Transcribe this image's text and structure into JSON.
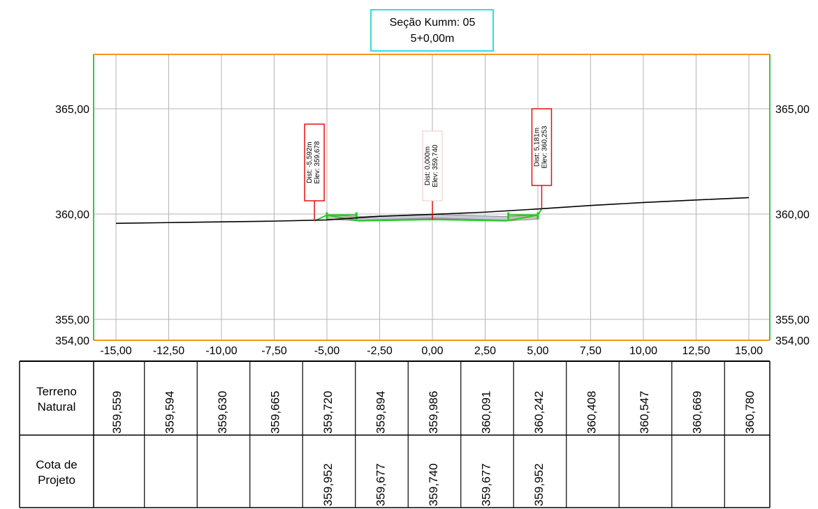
{
  "title": {
    "line1": "Seção Kumm: 05",
    "line2": "5+0,00m"
  },
  "colors": {
    "frame_top": "#f7941d",
    "frame_side": "#33cc33",
    "title_border": "#33dddd",
    "grid": "#b4b4b4",
    "terrain": "#000000",
    "design": "#22cc22",
    "label_red": "#e01010",
    "pavement": "#c9c2b0",
    "pavement_dark": "#8f8f9a"
  },
  "chart_data": {
    "type": "line",
    "x_ticks": [
      -15,
      -12.5,
      -10,
      -7.5,
      -5,
      -2.5,
      0,
      2.5,
      5,
      7.5,
      10,
      12.5,
      15
    ],
    "x_tick_labels": [
      "-15,00",
      "-12,50",
      "-10,00",
      "-7,50",
      "-5,00",
      "-2,50",
      "0,00",
      "2,50",
      "5,00",
      "7,50",
      "10,00",
      "12,50",
      "15,00"
    ],
    "y_ticks": [
      354,
      355,
      360,
      365
    ],
    "y_tick_labels": [
      "354,00",
      "355,00",
      "360,00",
      "365,00"
    ],
    "xlim": [
      -16,
      16.5
    ],
    "ylim": [
      354,
      367.4
    ],
    "grid": true,
    "series": [
      {
        "key": "terrain",
        "x": [
          -15,
          -12.5,
          -10,
          -7.5,
          -5,
          -2.5,
          0,
          2.5,
          5,
          7.5,
          10,
          12.5,
          15
        ],
        "y": [
          359.559,
          359.594,
          359.63,
          359.665,
          359.72,
          359.894,
          359.986,
          360.091,
          360.242,
          360.408,
          360.547,
          360.669,
          360.78
        ]
      },
      {
        "key": "design-top",
        "x": [
          -5.592,
          -5,
          -3.6,
          0,
          3.6,
          5,
          5.181
        ],
        "y": [
          359.678,
          359.952,
          359.877,
          359.985,
          359.877,
          359.952,
          360.253
        ]
      },
      {
        "key": "design-bottom",
        "x": [
          -5,
          -3.5,
          0,
          3.5,
          5
        ],
        "y": [
          359.952,
          359.677,
          359.74,
          359.677,
          359.952
        ]
      }
    ],
    "annotations": [
      {
        "x": 0,
        "y": 359.74,
        "dist": "Dist: 0,000m",
        "elev": "Elev: 359,740",
        "boxed": false
      },
      {
        "x": -5.592,
        "y": 359.678,
        "dist": "Dist: -5,592m",
        "elev": "Elev: 359,678",
        "boxed": true
      },
      {
        "x": 5.181,
        "y": 360.253,
        "dist": "Dist: 5,181m",
        "elev": "Elev: 360,253",
        "boxed": true
      }
    ]
  },
  "table": {
    "rows": [
      {
        "label_line1": "Terreno",
        "label_line2": "Natural",
        "values": [
          "359,559",
          "359,594",
          "359,630",
          "359,665",
          "359,720",
          "359,894",
          "359,986",
          "360,091",
          "360,242",
          "360,408",
          "360,547",
          "360,669",
          "360,780"
        ]
      },
      {
        "label_line1": "Cota de",
        "label_line2": "Projeto",
        "values": [
          "",
          "",
          "",
          "",
          "359,952",
          "359,677",
          "359,740",
          "359,677",
          "359,952",
          "",
          "",
          "",
          ""
        ]
      }
    ]
  }
}
